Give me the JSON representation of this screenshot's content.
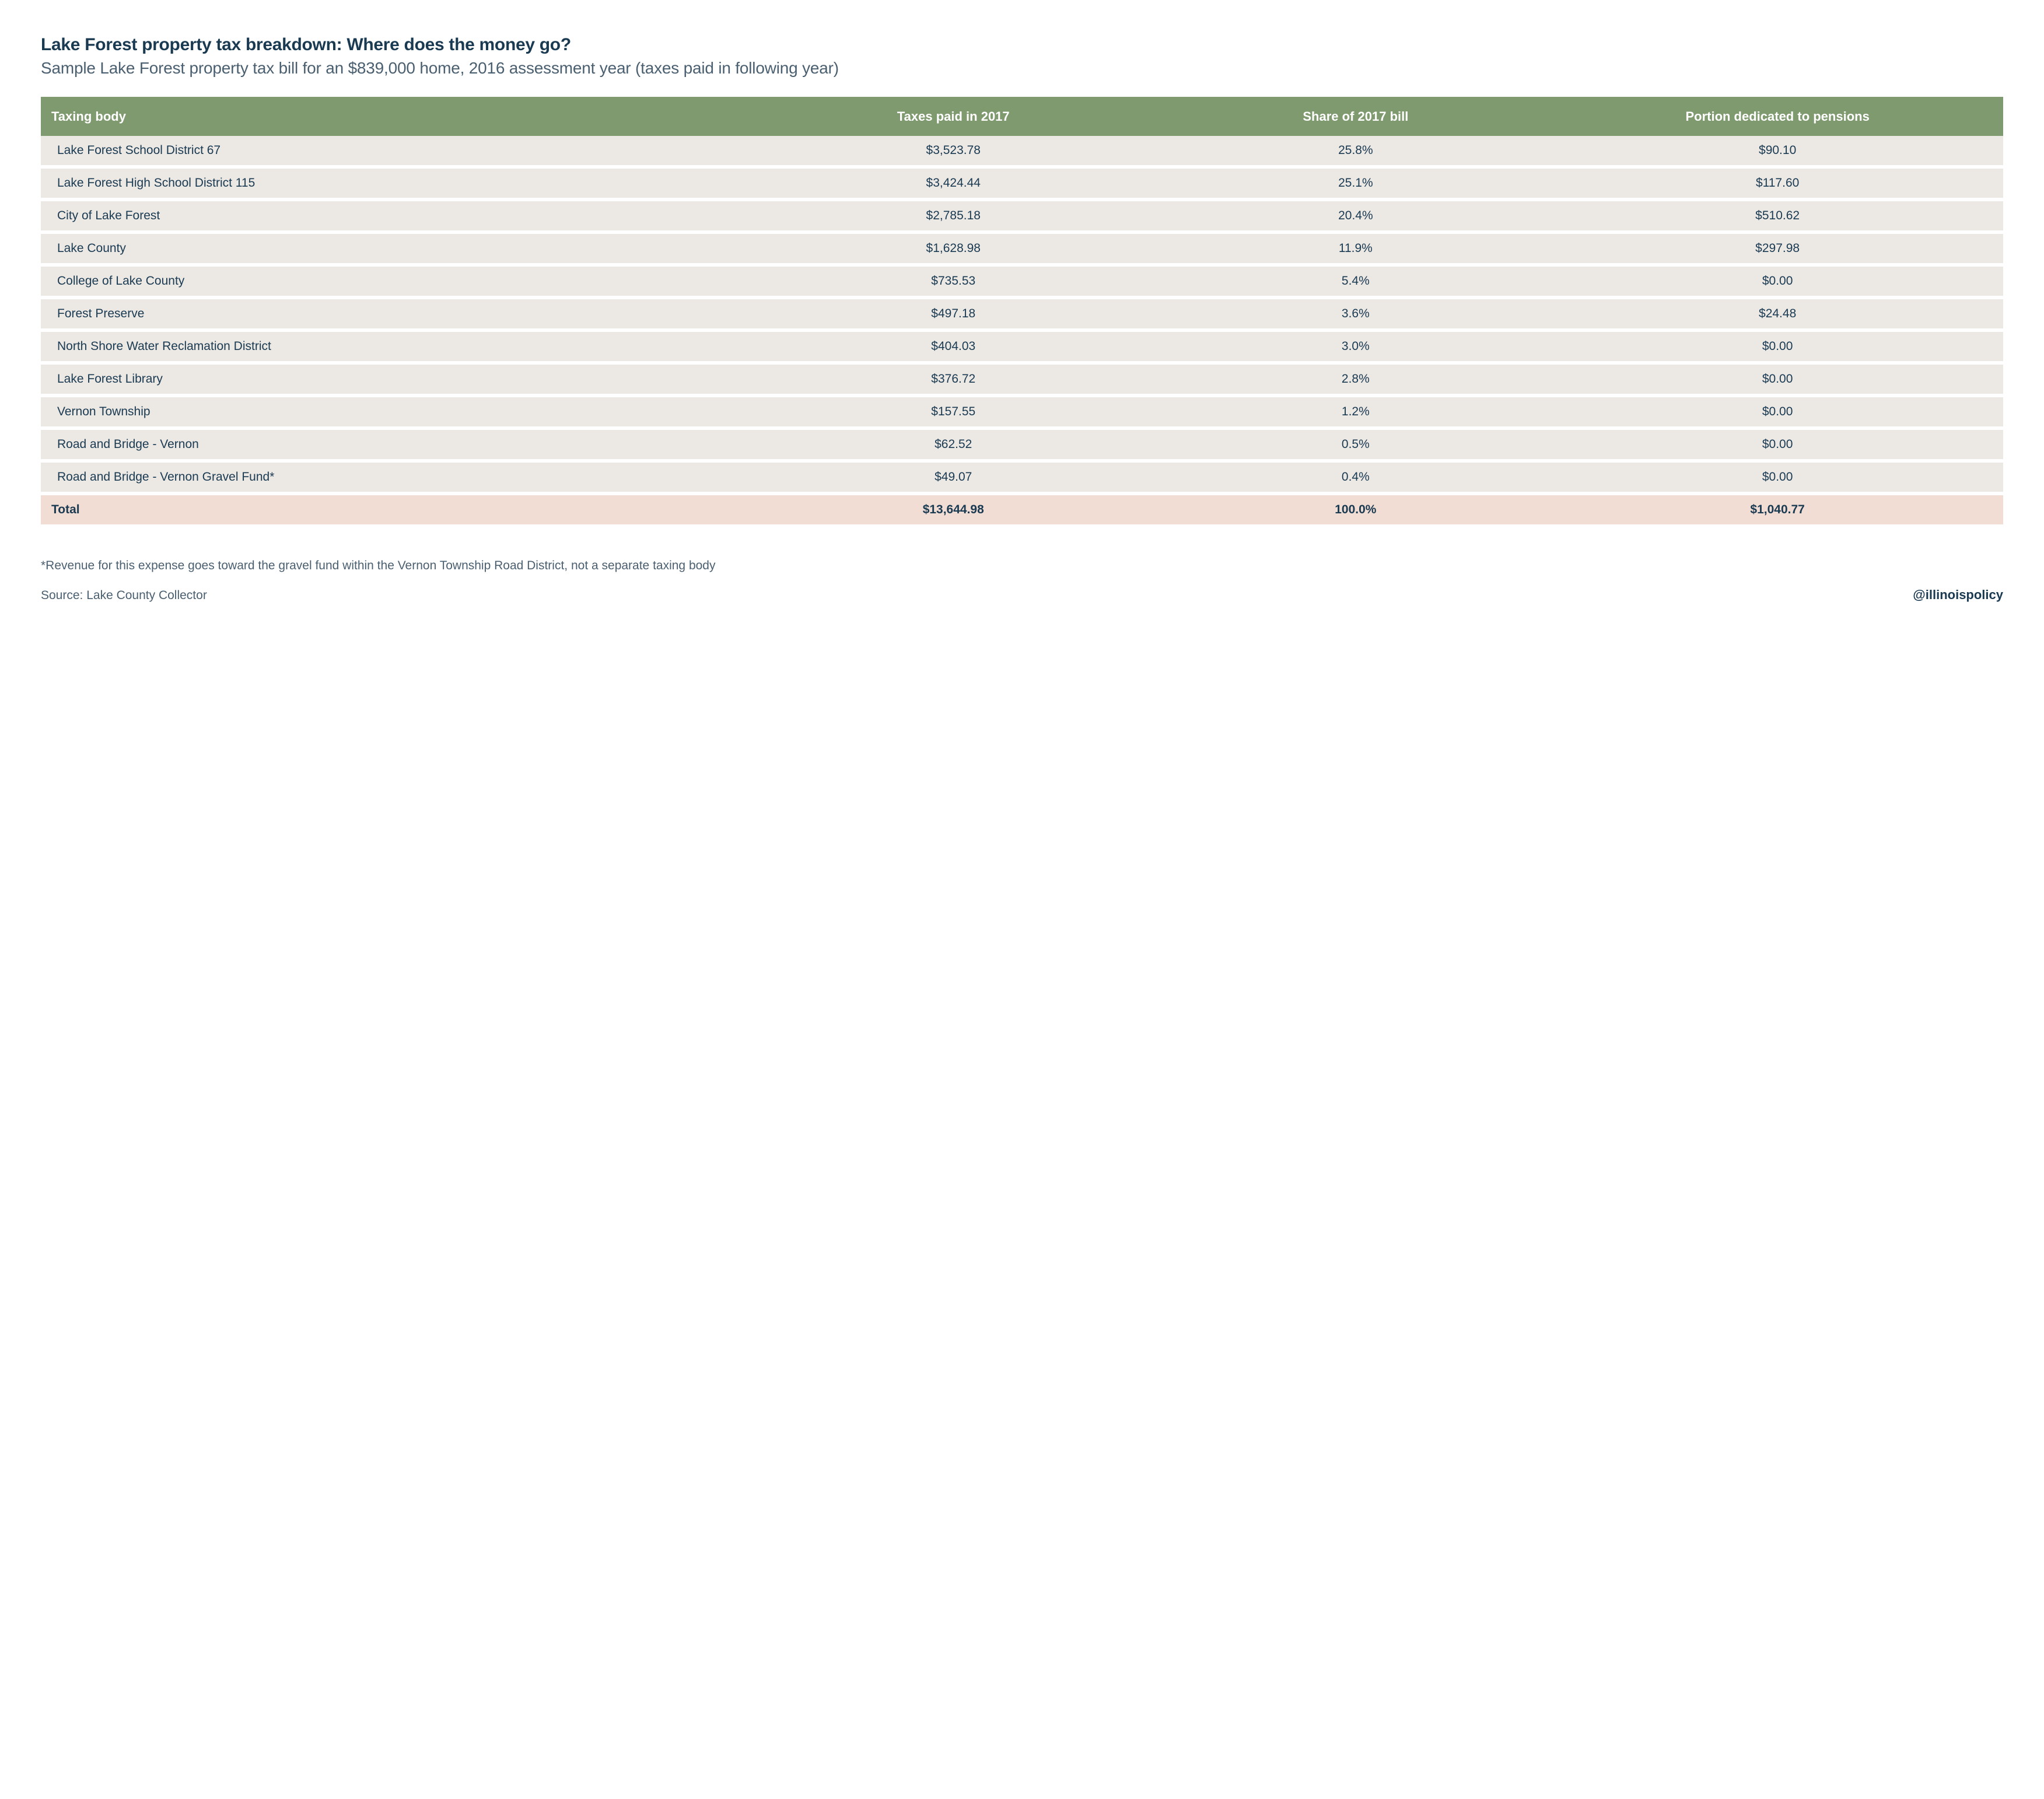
{
  "title": "Lake Forest property tax breakdown: Where does the money go?",
  "subtitle": "Sample Lake Forest property tax bill for an $839,000 home, 2016 assessment year (taxes paid in following year)",
  "table": {
    "columns": [
      "Taxing body",
      "Taxes paid in 2017",
      "Share of 2017 bill",
      "Portion dedicated to pensions"
    ],
    "rows": [
      {
        "body": "Lake Forest School District 67",
        "taxes": "$3,523.78",
        "share": "25.8%",
        "pension": "$90.10"
      },
      {
        "body": "Lake Forest High School District 115",
        "taxes": "$3,424.44",
        "share": "25.1%",
        "pension": "$117.60"
      },
      {
        "body": "City of Lake Forest",
        "taxes": "$2,785.18",
        "share": "20.4%",
        "pension": "$510.62"
      },
      {
        "body": "Lake County",
        "taxes": "$1,628.98",
        "share": "11.9%",
        "pension": "$297.98"
      },
      {
        "body": "College of Lake County",
        "taxes": "$735.53",
        "share": "5.4%",
        "pension": "$0.00"
      },
      {
        "body": "Forest Preserve",
        "taxes": "$497.18",
        "share": "3.6%",
        "pension": "$24.48"
      },
      {
        "body": "North Shore Water Reclamation District",
        "taxes": "$404.03",
        "share": "3.0%",
        "pension": "$0.00"
      },
      {
        "body": "Lake Forest Library",
        "taxes": "$376.72",
        "share": "2.8%",
        "pension": "$0.00"
      },
      {
        "body": "Vernon Township",
        "taxes": "$157.55",
        "share": "1.2%",
        "pension": "$0.00"
      },
      {
        "body": "Road and Bridge - Vernon",
        "taxes": "$62.52",
        "share": "0.5%",
        "pension": "$0.00"
      },
      {
        "body": "Road and Bridge - Vernon Gravel Fund*",
        "taxes": "$49.07",
        "share": "0.4%",
        "pension": "$0.00"
      }
    ],
    "total": {
      "body": "Total",
      "taxes": "$13,644.98",
      "share": "100.0%",
      "pension": "$1,040.77"
    }
  },
  "footnote": "*Revenue for this expense goes toward the gravel fund within the Vernon Township Road District, not a separate taxing body",
  "source": "Source: Lake County Collector",
  "handle": "@illinoispolicy",
  "colors": {
    "header_bg": "#7f9a6f",
    "header_text": "#ffffff",
    "row_bg": "#ece8e4",
    "total_bg": "#f2ddd4",
    "title_color": "#1a3a52",
    "subtitle_color": "#4a5f70",
    "background": "#ffffff"
  },
  "typography": {
    "title_fontsize": 30,
    "title_weight": 700,
    "subtitle_fontsize": 28,
    "subtitle_weight": 300,
    "header_fontsize": 22,
    "cell_fontsize": 21,
    "footnote_fontsize": 21
  }
}
